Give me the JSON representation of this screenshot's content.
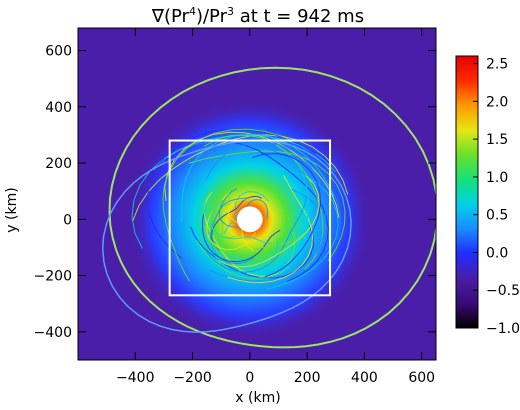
{
  "chart_data": {
    "type": "heatmap",
    "title": {
      "prefix": "∇(Pr",
      "sup1": "4",
      "middle": ")/Pr",
      "sup2": "3",
      "suffix": " at t = 942 ms"
    },
    "xlabel": "x (km)",
    "ylabel": "y (km)",
    "xlim": [
      -600,
      650
    ],
    "ylim": [
      -500,
      680
    ],
    "x_ticks": [
      -400,
      -200,
      0,
      200,
      400,
      600
    ],
    "y_ticks": [
      -400,
      -200,
      0,
      200,
      400,
      600
    ],
    "colorbar": {
      "range": [
        -1.0,
        2.6
      ],
      "ticks": [
        "2.5",
        "2.0",
        "1.5",
        "1.0",
        "0.5",
        "0.0",
        "-0.5",
        "-1.0"
      ],
      "tick_values": [
        2.5,
        2.0,
        1.5,
        1.0,
        0.5,
        0.0,
        -0.5,
        -1.0
      ],
      "colormap": [
        "#000000",
        "#3a0a78",
        "#4a1ea8",
        "#1f2cff",
        "#1a8cff",
        "#00d2e6",
        "#14e07a",
        "#6ae02a",
        "#e6e614",
        "#ff9a00",
        "#ff2a00",
        "#e60000"
      ]
    },
    "background_value": -0.4,
    "inner_box": {
      "x": [
        -280,
        280
      ],
      "y": [
        -270,
        280
      ]
    },
    "central_hole_radius_km": 45,
    "shock_front_color": "#9be564"
  }
}
